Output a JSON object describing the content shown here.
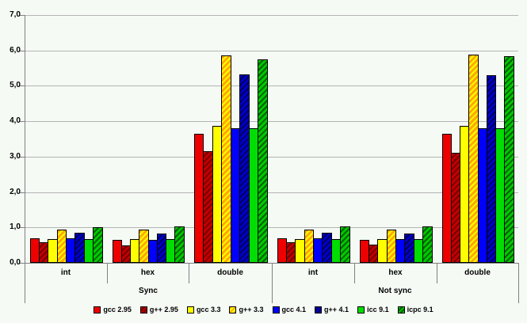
{
  "chart_data": {
    "type": "bar",
    "title": "",
    "background_color": "#F5FAF5",
    "gridline_color": "#B4B4B4",
    "axis_color": "#808080",
    "grid": true,
    "legend_position": "bottom-center",
    "y_axis": {
      "min": 0,
      "max": 7,
      "step": 1,
      "tick_labels": [
        "0,0",
        "1,0",
        "2,0",
        "3,0",
        "4,0",
        "5,0",
        "6,0",
        "7,0"
      ]
    },
    "group_cells": [
      "sync-int",
      "sync-hex",
      "sync-double",
      "notsync-int",
      "notsync-hex",
      "notsync-double"
    ],
    "category_labels": [
      "int",
      "hex",
      "double",
      "int",
      "hex",
      "double"
    ],
    "group_labels": [
      "Sync",
      "Not sync"
    ],
    "series": [
      {
        "name": "gcc 2.95",
        "color": "#EE0000",
        "hatch_color": null,
        "values": [
          0.7,
          0.65,
          3.65,
          0.7,
          0.65,
          3.65
        ]
      },
      {
        "name": "g++ 2.95",
        "color": "#C00000",
        "hatch_color": "#7A0000",
        "values": [
          0.58,
          0.5,
          3.15,
          0.58,
          0.52,
          3.1
        ]
      },
      {
        "name": "gcc 3.3",
        "color": "#FFFF00",
        "hatch_color": null,
        "values": [
          0.68,
          0.66,
          3.87,
          0.68,
          0.67,
          3.88
        ]
      },
      {
        "name": "g++ 3.3",
        "color": "#FFA800",
        "hatch_color": "#FFFF00",
        "values": [
          0.93,
          0.95,
          5.85,
          0.93,
          0.94,
          5.88
        ]
      },
      {
        "name": "gcc 4.1",
        "color": "#0000FF",
        "hatch_color": null,
        "values": [
          0.7,
          0.65,
          3.8,
          0.7,
          0.66,
          3.81
        ]
      },
      {
        "name": "g++ 4.1",
        "color": "#0000C8",
        "hatch_color": "#000064",
        "values": [
          0.85,
          0.82,
          5.32,
          0.85,
          0.82,
          5.29
        ]
      },
      {
        "name": "icc 9.1",
        "color": "#00DD00",
        "hatch_color": null,
        "values": [
          0.68,
          0.66,
          3.8,
          0.68,
          0.67,
          3.81
        ]
      },
      {
        "name": "icpc 9.1",
        "color": "#00C800",
        "hatch_color": "#006400",
        "values": [
          1.0,
          1.02,
          5.74,
          1.02,
          1.02,
          5.83
        ]
      }
    ]
  }
}
